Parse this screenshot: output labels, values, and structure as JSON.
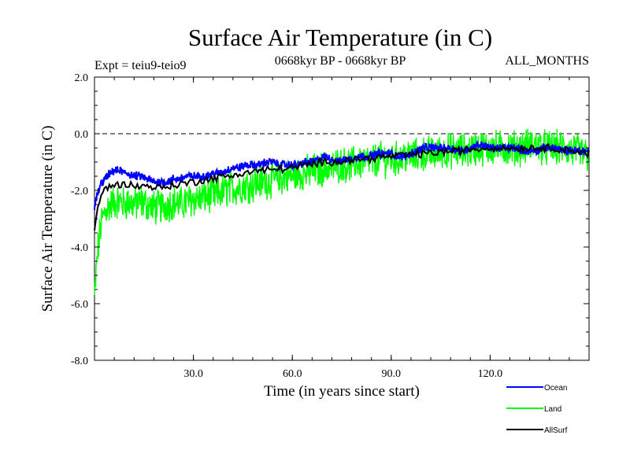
{
  "chart_data": {
    "type": "line",
    "title": "Surface Air Temperature (in C)",
    "subtitle": "0668kyr BP - 0668kyr BP",
    "expt_label": "Expt = teiu9-teio9",
    "months_label": "ALL_MONTHS",
    "xlabel": "Time (in years since start)",
    "ylabel": "Surface Air Temperature (in C)",
    "xlim": [
      0,
      150
    ],
    "ylim": [
      -8.0,
      2.0
    ],
    "x_ticks": [
      {
        "value": 30,
        "label": "30.0"
      },
      {
        "value": 60,
        "label": "60.0"
      },
      {
        "value": 90,
        "label": "90.0"
      },
      {
        "value": 120,
        "label": "120.0"
      }
    ],
    "y_ticks": [
      {
        "value": 2.0,
        "label": "2.0"
      },
      {
        "value": 0.0,
        "label": "0.0"
      },
      {
        "value": -2.0,
        "label": "-2.0"
      },
      {
        "value": -4.0,
        "label": "-4.0"
      },
      {
        "value": -6.0,
        "label": "-6.0"
      },
      {
        "value": -8.0,
        "label": "-8.0"
      }
    ],
    "reference_line": {
      "value": 0.0,
      "style": "dashed"
    },
    "series": [
      {
        "name": "Land",
        "color": "#00ff00",
        "x": [
          0,
          1,
          2,
          3,
          4,
          5,
          6,
          7,
          8,
          9,
          10,
          12,
          14,
          16,
          18,
          20,
          22,
          24,
          26,
          28,
          30,
          32,
          34,
          36,
          38,
          40,
          42,
          44,
          46,
          48,
          50,
          52,
          54,
          56,
          58,
          60,
          62,
          64,
          66,
          68,
          70,
          72,
          74,
          76,
          78,
          80,
          82,
          84,
          86,
          88,
          90,
          92,
          94,
          96,
          98,
          100,
          102,
          104,
          106,
          108,
          110,
          112,
          114,
          116,
          118,
          120,
          122,
          124,
          126,
          128,
          130,
          132,
          134,
          136,
          138,
          140,
          142,
          144,
          146,
          148,
          150
        ],
        "y": [
          -5.8,
          -4.1,
          -3.2,
          -2.8,
          -2.6,
          -2.5,
          -2.4,
          -2.4,
          -2.4,
          -2.5,
          -2.4,
          -2.5,
          -2.4,
          -2.5,
          -2.6,
          -2.6,
          -2.5,
          -2.4,
          -2.5,
          -2.4,
          -2.3,
          -2.3,
          -2.2,
          -2.2,
          -2.1,
          -2.0,
          -1.9,
          -1.9,
          -1.8,
          -1.8,
          -1.7,
          -1.7,
          -1.6,
          -1.6,
          -1.5,
          -1.5,
          -1.4,
          -1.4,
          -1.3,
          -1.3,
          -1.2,
          -1.2,
          -1.1,
          -1.1,
          -1.1,
          -1.0,
          -1.0,
          -1.0,
          -0.9,
          -0.9,
          -0.9,
          -0.9,
          -0.8,
          -0.8,
          -0.8,
          -0.7,
          -0.7,
          -0.7,
          -0.6,
          -0.6,
          -0.6,
          -0.6,
          -0.6,
          -0.5,
          -0.5,
          -0.5,
          -0.5,
          -0.5,
          -0.5,
          -0.5,
          -0.5,
          -0.4,
          -0.4,
          -0.5,
          -0.5,
          -0.5,
          -0.5,
          -0.6,
          -0.6,
          -0.7,
          -0.8
        ]
      },
      {
        "name": "Ocean",
        "color": "#0000ff",
        "x": [
          0,
          1,
          2,
          3,
          4,
          5,
          6,
          7,
          8,
          9,
          10,
          12,
          14,
          16,
          18,
          20,
          22,
          24,
          26,
          28,
          30,
          32,
          34,
          36,
          38,
          40,
          42,
          44,
          46,
          48,
          50,
          52,
          54,
          56,
          58,
          60,
          62,
          64,
          66,
          68,
          70,
          72,
          74,
          76,
          78,
          80,
          82,
          84,
          86,
          88,
          90,
          92,
          94,
          96,
          98,
          100,
          102,
          104,
          106,
          108,
          110,
          112,
          114,
          116,
          118,
          120,
          122,
          124,
          126,
          128,
          130,
          132,
          134,
          136,
          138,
          140,
          142,
          144,
          146,
          148,
          150
        ],
        "y": [
          -2.6,
          -2.1,
          -1.8,
          -1.6,
          -1.5,
          -1.4,
          -1.3,
          -1.3,
          -1.3,
          -1.4,
          -1.4,
          -1.5,
          -1.5,
          -1.6,
          -1.7,
          -1.7,
          -1.7,
          -1.6,
          -1.6,
          -1.5,
          -1.5,
          -1.5,
          -1.5,
          -1.4,
          -1.4,
          -1.3,
          -1.2,
          -1.2,
          -1.1,
          -1.1,
          -1.1,
          -1.0,
          -1.0,
          -1.1,
          -1.1,
          -1.1,
          -1.1,
          -1.0,
          -1.0,
          -0.9,
          -0.8,
          -0.9,
          -1.0,
          -0.9,
          -0.9,
          -0.8,
          -0.8,
          -0.8,
          -0.7,
          -0.7,
          -0.7,
          -0.8,
          -0.8,
          -0.7,
          -0.6,
          -0.5,
          -0.5,
          -0.5,
          -0.5,
          -0.5,
          -0.6,
          -0.6,
          -0.5,
          -0.4,
          -0.4,
          -0.5,
          -0.5,
          -0.5,
          -0.5,
          -0.5,
          -0.6,
          -0.6,
          -0.6,
          -0.5,
          -0.5,
          -0.5,
          -0.6,
          -0.6,
          -0.6,
          -0.6,
          -0.6
        ]
      },
      {
        "name": "AllSurf",
        "color": "#000000",
        "x": [
          0,
          1,
          2,
          3,
          4,
          5,
          10,
          20,
          30,
          40,
          50,
          60,
          70,
          80,
          90,
          100,
          110,
          120,
          130,
          140,
          150
        ],
        "y": [
          -3.5,
          -2.6,
          -2.2,
          -2.0,
          -1.9,
          -1.8,
          -1.8,
          -1.9,
          -1.7,
          -1.5,
          -1.3,
          -1.2,
          -1.0,
          -0.9,
          -0.8,
          -0.7,
          -0.6,
          -0.5,
          -0.5,
          -0.5,
          -0.7
        ]
      }
    ],
    "legend": [
      {
        "name": "Ocean",
        "color": "#0000ff"
      },
      {
        "name": "Land",
        "color": "#00ff00"
      },
      {
        "name": "AllSurf",
        "color": "#000000"
      }
    ]
  }
}
